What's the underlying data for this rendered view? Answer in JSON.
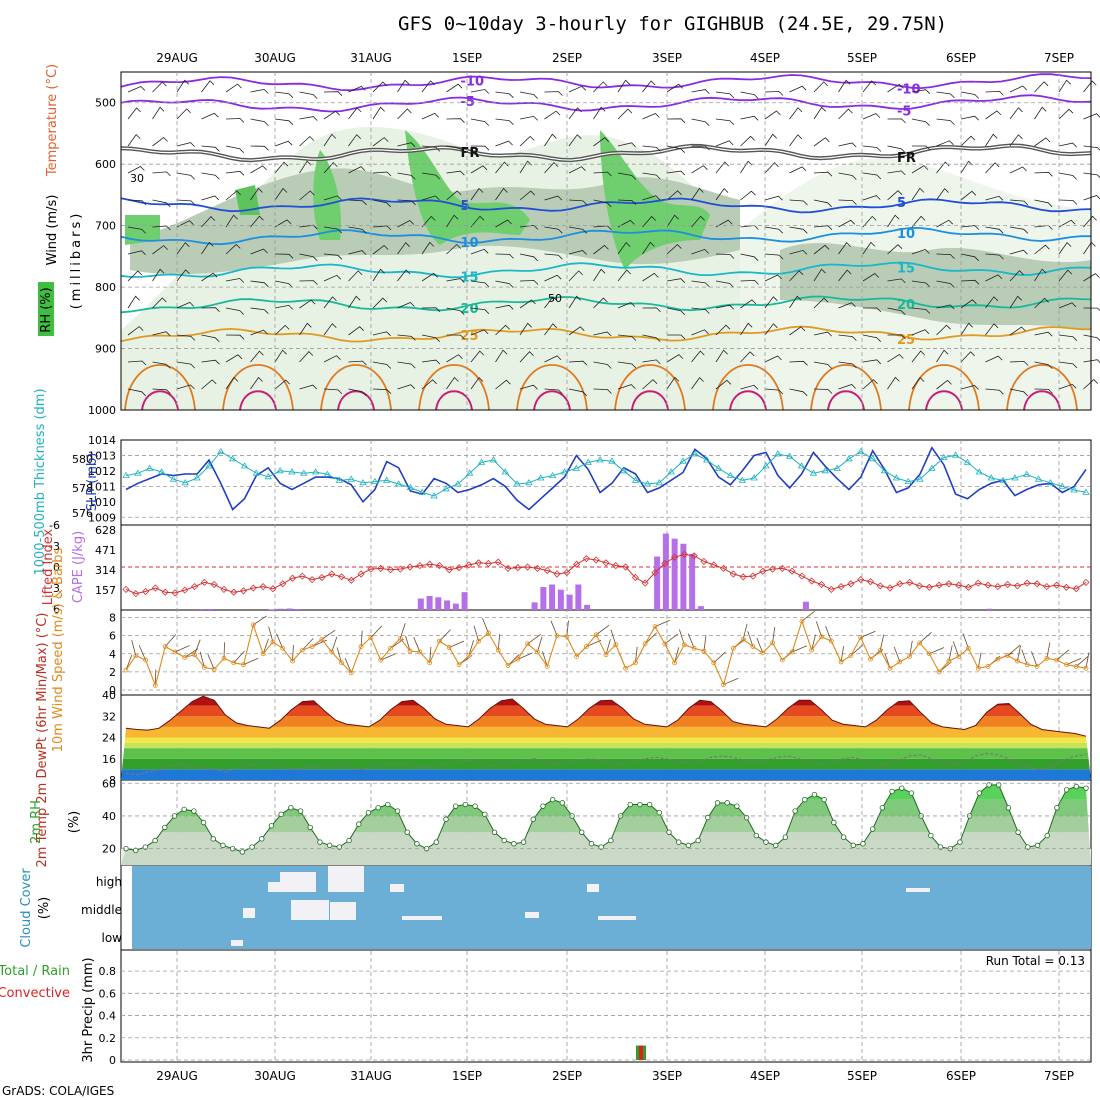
{
  "header": {
    "title": "GFS 0~10day 3-hourly for GIGHBUB (24.5E, 29.75N)"
  },
  "footer": {
    "credit": "GrADS: COLA/IGES"
  },
  "colors": {
    "wind": "#000000",
    "temp": "#e0303a",
    "rh": "#2ca02c",
    "slp": "#1f3fbf",
    "thickness": "#20b2c0",
    "cape": "#b56fe8",
    "lifted": "#d43030",
    "wind10": "#e08a1c",
    "cloud_bg": "#6baed6",
    "precip": "#2ca02c",
    "conv": "#e02020"
  },
  "chart_data": [
    {
      "type": "heatmap",
      "name": "upper-air cross section",
      "ylabel_parts": [
        "Wind (m/s)",
        "Temperature (°C)",
        "RH (%)"
      ],
      "ylabel_units": "(millibars)",
      "y_ticks": [
        "500",
        "600",
        "700",
        "800",
        "900",
        "1000"
      ],
      "ylim": [
        1000,
        450
      ],
      "x_dates": [
        "29AUG",
        "30AUG",
        "31AUG",
        "1SEP",
        "2SEP",
        "3SEP",
        "4SEP",
        "5SEP",
        "6SEP",
        "7SEP"
      ],
      "temperature_isotherms": [
        {
          "label": "-10",
          "level_mb": 470
        },
        {
          "label": "-5",
          "level_mb": 505
        },
        {
          "label": "FR",
          "level_mb": 585
        },
        {
          "label": "5",
          "level_mb": 665
        },
        {
          "label": "10",
          "level_mb": 720
        },
        {
          "label": "15",
          "level_mb": 775
        },
        {
          "label": "20",
          "level_mb": 830
        },
        {
          "label": "25",
          "level_mb": 880
        }
      ],
      "rh_contour_labels": [
        "30",
        "50"
      ]
    },
    {
      "type": "line",
      "name": "SLP and thickness",
      "ylabel_left": "1000-500mb Thickness (dm)",
      "ylabel_right": "SLP (mb)",
      "left_ticks": [
        "580",
        "578",
        "576"
      ],
      "right_ticks": [
        "1014",
        "1013",
        "1012",
        "1011",
        "1010",
        "1009"
      ],
      "ylim_slp": [
        1008.5,
        1014
      ],
      "series": [
        {
          "name": "SLP (mb)",
          "values": [
            1010.8,
            1011.2,
            1011.5,
            1011.8,
            1011.7,
            1011.8,
            1011.8,
            1012.7,
            1011.2,
            1009.5,
            1010.2,
            1011.7,
            1012.2,
            1011.2,
            1010.8,
            1011.2,
            1011.6,
            1011.6,
            1011.5,
            1011.1,
            1010.0,
            1010.8,
            1012.6,
            1012.2,
            1010.7,
            1010.5,
            1011.5,
            1011.2,
            1010.6,
            1010.8,
            1011.1,
            1011.5,
            1011.0,
            1010.1,
            1009.5,
            1010.2,
            1010.9,
            1011.6,
            1013.0,
            1012.1,
            1010.6,
            1011.2,
            1012.2,
            1011.8,
            1010.6,
            1010.9,
            1011.4,
            1011.9,
            1013.4,
            1012.8,
            1011.6,
            1011.1,
            1012.0,
            1013.0,
            1013.2,
            1011.7,
            1010.9,
            1011.8,
            1013.2,
            1012.3,
            1011.5,
            1010.8,
            1011.6,
            1013.3,
            1012.1,
            1010.6,
            1010.9,
            1011.8,
            1013.5,
            1012.4,
            1010.5,
            1010.2,
            1010.8,
            1011.2,
            1011.4,
            1010.4,
            1010.8,
            1011.1,
            1011.2,
            1010.6,
            1011.0,
            1012.1
          ]
        },
        {
          "name": "Thickness (dm)",
          "values": [
            578.2,
            578.4,
            578.8,
            578.5,
            577.9,
            577.6,
            578.0,
            579.0,
            580.2,
            579.6,
            579.0,
            578.4,
            578.1,
            578.6,
            578.5,
            578.4,
            578.5,
            578.3,
            577.8,
            577.9,
            577.6,
            577.7,
            577.8,
            577.5,
            577.2,
            576.8,
            576.5,
            577.1,
            577.5,
            578.4,
            579.3,
            579.5,
            578.5,
            577.5,
            577.6,
            578.0,
            578.2,
            578.5,
            578.8,
            579.3,
            579.5,
            579.4,
            578.6,
            577.8,
            577.5,
            577.6,
            578.5,
            579.4,
            580.0,
            579.5,
            578.8,
            578.2,
            577.8,
            578.0,
            579.0,
            580.0,
            579.8,
            579.0,
            578.4,
            578.6,
            578.8,
            579.6,
            580.2,
            579.6,
            578.6,
            578.0,
            577.7,
            577.9,
            578.8,
            579.7,
            579.9,
            579.3,
            578.5,
            578.0,
            577.8,
            578.0,
            578.3,
            577.9,
            577.6,
            577.3,
            577.0,
            576.8
          ]
        }
      ]
    },
    {
      "type": "bar",
      "name": "CAPE and Lifted Index",
      "ylabel_left": "Lifted Index",
      "ylabel_right": "CAPE (J/kg)",
      "left_ticks": [
        "-6",
        "-3",
        "0",
        "3",
        "6"
      ],
      "right_ticks": [
        "628",
        "471",
        "314",
        "157"
      ],
      "series": [
        {
          "name": "CAPE (J/kg)",
          "values": [
            0,
            0,
            0,
            0,
            0,
            0,
            0,
            0,
            8,
            8,
            0,
            0,
            0,
            0,
            0,
            0,
            5,
            10,
            12,
            8,
            0,
            0,
            0,
            0,
            0,
            0,
            0,
            0,
            0,
            0,
            0,
            0,
            0,
            90,
            110,
            100,
            75,
            50,
            140,
            0,
            0,
            0,
            0,
            0,
            0,
            0,
            60,
            180,
            200,
            160,
            120,
            200,
            40,
            0,
            0,
            0,
            0,
            0,
            0,
            0,
            420,
            600,
            560,
            520,
            440,
            30,
            0,
            0,
            0,
            0,
            0,
            0,
            0,
            0,
            0,
            0,
            0,
            65,
            0,
            0,
            0,
            0,
            0,
            0,
            0,
            0,
            0,
            0,
            0,
            0,
            0,
            0,
            0,
            0,
            0,
            0,
            0,
            0,
            10,
            0,
            0,
            0,
            0,
            0,
            0,
            0,
            0,
            0,
            0
          ]
        },
        {
          "name": "Lifted Index",
          "values": [
            3.2,
            3.8,
            3.5,
            3.0,
            3.6,
            3.7,
            3.3,
            2.8,
            2.2,
            2.5,
            3.2,
            3.6,
            3.4,
            3.0,
            2.8,
            3.1,
            2.4,
            1.6,
            1.3,
            1.8,
            1.5,
            1.0,
            1.4,
            1.9,
            1.0,
            0.3,
            0.2,
            0.4,
            0.3,
            0.0,
            -0.2,
            -0.4,
            -0.2,
            0.4,
            0.1,
            -0.3,
            -0.6,
            -0.5,
            -0.7,
            0.2,
            0.1,
            0.0,
            0.2,
            0.5,
            1.0,
            0.8,
            -0.4,
            -1.2,
            -1.0,
            -0.6,
            -0.2,
            0.0,
            1.5,
            2.3,
            0.8,
            -0.5,
            -1.4,
            -1.8,
            -1.6,
            -0.8,
            -0.3,
            0.2,
            1.0,
            1.4,
            1.3,
            0.6,
            0.3,
            0.2,
            0.6,
            1.3,
            2.0,
            2.5,
            3.2,
            2.8,
            2.4,
            1.8,
            2.1,
            2.7,
            3.0,
            2.4,
            2.2,
            2.7,
            2.9,
            2.6,
            2.4,
            2.6,
            2.9,
            2.3,
            2.6,
            2.8,
            2.5,
            2.7,
            2.3,
            2.4,
            2.8,
            2.6,
            2.9,
            3.1,
            2.2
          ]
        }
      ]
    },
    {
      "type": "line",
      "name": "10m wind",
      "ylabel": "10m Wind Speed (m/s) & Barbs",
      "ticks": [
        "8",
        "6",
        "4",
        "2",
        "0"
      ],
      "ylim": [
        0,
        8.5
      ],
      "series": [
        {
          "name": "10m Wind Speed (m/s)",
          "values": [
            2.2,
            3.8,
            3.3,
            0.5,
            4.8,
            4.2,
            3.6,
            3.9,
            2.5,
            2.3,
            3.5,
            3.0,
            2.8,
            7.2,
            4.0,
            5.3,
            4.6,
            3.2,
            4.4,
            4.8,
            5.6,
            4.2,
            3.0,
            1.9,
            4.8,
            5.8,
            3.3,
            4.6,
            5.7,
            4.3,
            4.2,
            3.0,
            5.4,
            4.7,
            2.8,
            3.8,
            5.4,
            6.3,
            4.4,
            2.7,
            3.4,
            5.1,
            4.2,
            2.6,
            6.0,
            5.9,
            3.7,
            4.8,
            6.1,
            3.9,
            5.0,
            2.4,
            3.0,
            5.1,
            7.0,
            5.1,
            3.0,
            5.0,
            4.6,
            4.3,
            3.0,
            0.6,
            4.6,
            5.6,
            4.8,
            4.1,
            5.2,
            3.3,
            4.2,
            7.6,
            4.4,
            5.9,
            5.4,
            3.1,
            3.8,
            5.8,
            3.4,
            4.4,
            2.4,
            3.1,
            3.7,
            5.2,
            4.0,
            2.0,
            3.2,
            3.7,
            4.6,
            2.4,
            2.6,
            3.4,
            3.8,
            3.2,
            2.8,
            2.6,
            3.5,
            3.3,
            2.8,
            2.6,
            2.4
          ]
        }
      ]
    },
    {
      "type": "area",
      "name": "2m temperature",
      "ylabel": "2m Temp 2m DewPt (6hr Min/Max) (°C)",
      "ticks": [
        "40",
        "32",
        "24",
        "16",
        "8"
      ],
      "ylim": [
        8,
        40
      ],
      "series": [
        {
          "name": "2m Temp (°C)",
          "values": [
            27.5,
            27.0,
            26.8,
            27.5,
            30.5,
            34.0,
            37.5,
            39.5,
            38.0,
            32.5,
            29.5,
            28.5,
            28.0,
            27.5,
            30.5,
            34.5,
            37.5,
            37.8,
            34.0,
            30.5,
            29.0,
            28.5,
            28.0,
            30.5,
            34.5,
            37.5,
            38.0,
            35.0,
            31.0,
            29.0,
            28.5,
            28.0,
            31.0,
            35.0,
            37.8,
            38.5,
            35.0,
            31.0,
            29.0,
            28.5,
            28.0,
            31.0,
            35.0,
            37.8,
            38.0,
            35.0,
            31.0,
            29.0,
            28.5,
            28.0,
            30.5,
            35.0,
            38.0,
            37.5,
            34.0,
            30.0,
            29.0,
            28.5,
            28.0,
            31.0,
            35.0,
            38.0,
            38.0,
            34.5,
            30.5,
            29.0,
            28.5,
            28.0,
            30.5,
            34.5,
            37.5,
            37.8,
            33.5,
            29.5,
            28.0,
            27.5,
            27.0,
            28.5,
            33.5,
            36.5,
            36.8,
            33.0,
            29.0,
            27.0,
            26.5,
            26.0,
            25.5,
            24.5
          ]
        },
        {
          "name": "2m DewPt (°C)",
          "values": [
            10.5,
            10.0,
            11.0,
            12.0,
            13.5,
            14.0,
            13.0,
            12.5,
            12.0,
            11.0,
            12.5,
            13.5,
            14.0,
            14.5,
            13.0,
            12.0,
            12.5,
            13.0,
            13.5,
            14.0,
            13.0,
            12.0,
            12.5,
            13.5,
            14.0,
            14.0,
            13.5,
            12.5,
            13.0,
            14.0,
            15.0,
            15.5,
            14.5,
            13.5,
            14.0,
            15.0,
            15.5,
            16.0,
            15.0,
            14.0,
            14.5,
            15.5,
            16.0,
            15.5,
            14.5,
            14.0,
            15.0,
            16.0,
            16.5,
            16.0,
            15.0,
            14.5,
            15.0,
            16.5,
            17.0,
            16.5,
            15.5,
            15.0,
            15.5,
            16.5,
            17.0,
            16.0,
            14.5,
            14.0,
            15.0,
            16.0,
            16.5,
            15.0,
            13.5,
            14.0,
            15.5,
            17.0,
            17.5,
            16.0,
            14.5,
            14.0,
            15.0,
            17.0,
            18.0,
            17.5,
            16.0,
            14.0,
            12.5,
            12.0,
            13.5,
            15.5,
            17.0,
            17.5
          ]
        }
      ]
    },
    {
      "type": "area",
      "name": "2m relative humidity",
      "ylabel": "2m RH (%)",
      "ticks": [
        "60",
        "40",
        "20"
      ],
      "ylim": [
        10,
        62
      ],
      "series": [
        {
          "name": "2m RH (%)",
          "values": [
            20,
            19,
            21,
            25,
            33,
            40,
            44,
            43,
            36,
            26,
            22,
            20,
            18,
            21,
            26,
            34,
            41,
            45,
            43,
            33,
            24,
            22,
            21,
            25,
            35,
            42,
            45,
            47,
            43,
            30,
            23,
            20,
            24,
            38,
            46,
            47,
            46,
            41,
            30,
            25,
            23,
            24,
            38,
            46,
            50,
            48,
            40,
            30,
            23,
            21,
            25,
            40,
            47,
            47,
            47,
            42,
            30,
            24,
            22,
            25,
            39,
            48,
            48,
            46,
            39,
            28,
            24,
            22,
            27,
            43,
            50,
            53,
            50,
            36,
            27,
            22,
            23,
            32,
            45,
            55,
            57,
            54,
            40,
            28,
            21,
            20,
            24,
            40,
            54,
            59,
            59,
            45,
            30,
            21,
            22,
            28,
            45,
            56,
            58,
            57
          ]
        }
      ]
    },
    {
      "type": "heatmap",
      "name": "cloud cover",
      "ylabel": "Cloud Cover (%)",
      "levels": [
        "high",
        "middle",
        "low"
      ]
    },
    {
      "type": "bar",
      "name": "3hr precipitation",
      "ylabel": "3hr Precip (mm)",
      "legend": [
        "Total / Rain",
        "Convective"
      ],
      "ticks": [
        "0.8",
        "0.6",
        "0.4",
        "0.2",
        "0"
      ],
      "ylim": [
        0,
        0.9
      ],
      "annotation": "Run Total = 0.13",
      "series": [
        {
          "name": "Total / Rain",
          "index": 41,
          "value": 0.13
        },
        {
          "name": "Convective",
          "index": 41,
          "value": 0.13
        }
      ]
    }
  ]
}
